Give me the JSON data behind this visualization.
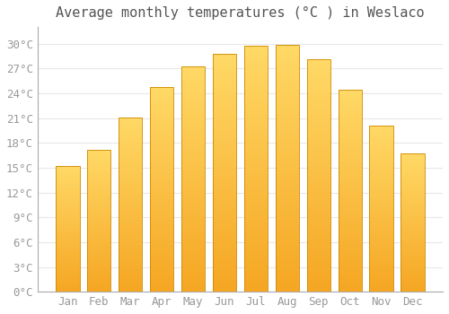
{
  "title": "Average monthly temperatures (°C ) in Weslaco",
  "months": [
    "Jan",
    "Feb",
    "Mar",
    "Apr",
    "May",
    "Jun",
    "Jul",
    "Aug",
    "Sep",
    "Oct",
    "Nov",
    "Dec"
  ],
  "temperatures": [
    15.2,
    17.2,
    21.1,
    24.7,
    27.2,
    28.8,
    29.7,
    29.8,
    28.1,
    24.4,
    20.1,
    16.7
  ],
  "bar_color_bottom": "#F5A623",
  "bar_color_top": "#FFD966",
  "bar_edge_color": "#CC8800",
  "background_color": "#FFFFFF",
  "grid_color": "#E8E8E8",
  "ylim": [
    0,
    32
  ],
  "yticks": [
    0,
    3,
    6,
    9,
    12,
    15,
    18,
    21,
    24,
    27,
    30
  ],
  "title_fontsize": 11,
  "tick_fontsize": 9
}
